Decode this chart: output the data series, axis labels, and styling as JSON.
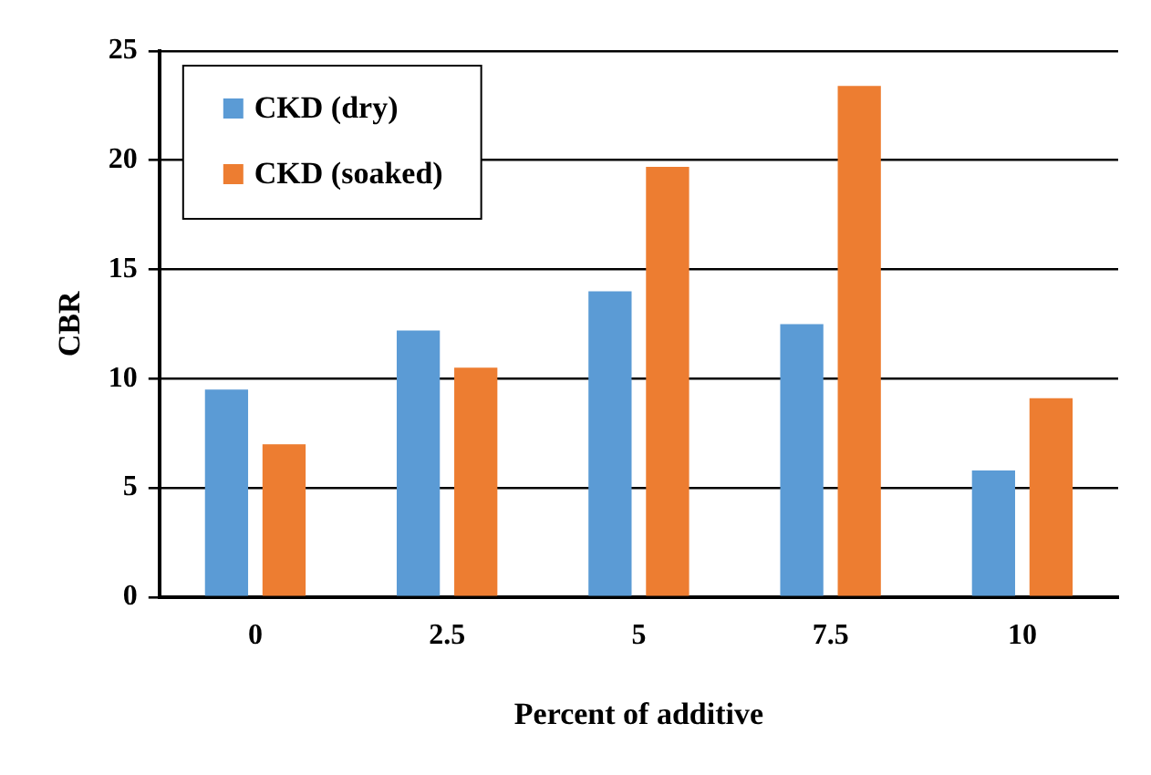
{
  "chart_data": {
    "type": "bar",
    "xlabel": "Percent of additive",
    "ylabel": "CBR",
    "categories": [
      "0",
      "2.5",
      "5",
      "7.5",
      "10"
    ],
    "series": [
      {
        "name": "CKD (dry)",
        "color": "#5b9bd5",
        "values": [
          9.5,
          12.2,
          14.0,
          12.5,
          5.8
        ]
      },
      {
        "name": "CKD (soaked)",
        "color": "#ed7d31",
        "values": [
          7.0,
          10.5,
          19.7,
          23.4,
          9.1
        ]
      }
    ],
    "ylim": [
      0,
      25
    ],
    "yticks": [
      0,
      5,
      10,
      15,
      20,
      25
    ],
    "grid": "y",
    "legend": "top left"
  }
}
